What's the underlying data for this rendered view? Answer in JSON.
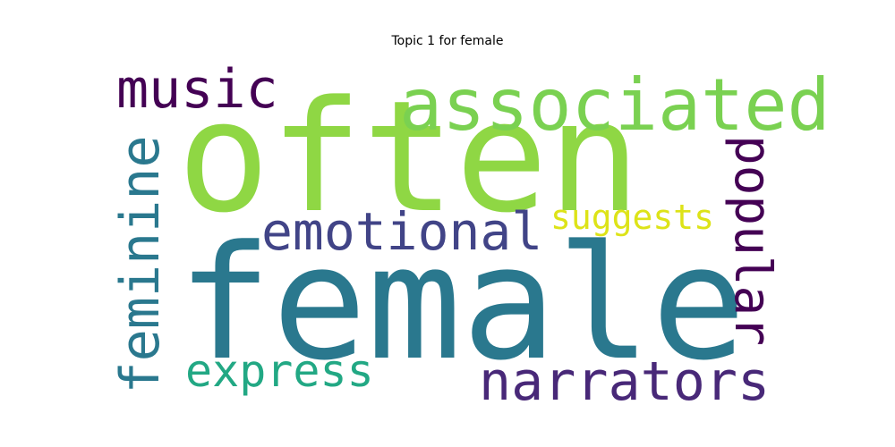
{
  "title": "Topic 1 for female",
  "words": [
    {
      "key": "often",
      "text": "often",
      "color": "#8fd744",
      "orientation": "horizontal"
    },
    {
      "key": "female",
      "text": "female",
      "color": "#2a788e",
      "orientation": "horizontal"
    },
    {
      "key": "associated",
      "text": "associated",
      "color": "#7ad151",
      "orientation": "horizontal"
    },
    {
      "key": "music",
      "text": "music",
      "color": "#440154",
      "orientation": "horizontal"
    },
    {
      "key": "emotional",
      "text": "emotional",
      "color": "#414487",
      "orientation": "horizontal"
    },
    {
      "key": "suggests",
      "text": "suggests",
      "color": "#dde318",
      "orientation": "horizontal"
    },
    {
      "key": "feminine",
      "text": "feminine",
      "color": "#2a788e",
      "orientation": "vertical"
    },
    {
      "key": "popular",
      "text": "popular",
      "color": "#440154",
      "orientation": "vertical"
    },
    {
      "key": "express",
      "text": "express",
      "color": "#22a884",
      "orientation": "horizontal"
    },
    {
      "key": "narrators",
      "text": "narrators",
      "color": "#482878",
      "orientation": "horizontal"
    }
  ]
}
